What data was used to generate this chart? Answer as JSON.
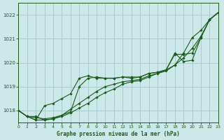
{
  "background_color": "#cce8e8",
  "grid_color": "#aacccc",
  "line_color": "#1a5c1a",
  "title": "Graphe pression niveau de la mer (hPa)",
  "xlim": [
    0,
    23
  ],
  "ylim": [
    1017.5,
    1022.5
  ],
  "yticks": [
    1018,
    1019,
    1020,
    1021,
    1022
  ],
  "xticks": [
    0,
    1,
    2,
    3,
    4,
    5,
    6,
    7,
    8,
    9,
    10,
    11,
    12,
    13,
    14,
    15,
    16,
    17,
    18,
    19,
    20,
    21,
    22,
    23
  ],
  "series": [
    [
      1018.0,
      1017.75,
      1017.75,
      1017.6,
      1017.65,
      1017.75,
      1017.9,
      1018.1,
      1018.3,
      1018.55,
      1018.75,
      1018.9,
      1019.1,
      1019.2,
      1019.25,
      1019.4,
      1019.55,
      1019.7,
      1019.9,
      1020.2,
      1020.6,
      1021.1,
      1021.8,
      1022.1
    ],
    [
      1018.0,
      1017.75,
      1017.7,
      1017.65,
      1017.7,
      1017.8,
      1017.95,
      1019.0,
      1019.35,
      1019.4,
      1019.35,
      1019.35,
      1019.4,
      1019.4,
      1019.4,
      1019.55,
      1019.6,
      1019.7,
      1020.35,
      1020.35,
      1020.4,
      1021.05,
      1021.8,
      1022.1
    ],
    [
      1018.0,
      1017.75,
      1017.6,
      1017.6,
      1017.65,
      1017.8,
      1018.05,
      1018.3,
      1018.55,
      1018.8,
      1019.0,
      1019.1,
      1019.2,
      1019.25,
      1019.3,
      1019.45,
      1019.55,
      1019.65,
      1019.9,
      1020.4,
      1021.05,
      1021.35,
      1021.8,
      1022.1
    ],
    [
      1018.0,
      1017.75,
      1017.6,
      1018.2,
      1018.3,
      1018.5,
      1018.7,
      1019.35,
      1019.45,
      1019.35,
      1019.35,
      1019.35,
      1019.4,
      1019.35,
      1019.4,
      1019.55,
      1019.6,
      1019.7,
      1020.4,
      1020.05,
      1020.1,
      1021.05,
      1021.8,
      1022.1
    ]
  ]
}
